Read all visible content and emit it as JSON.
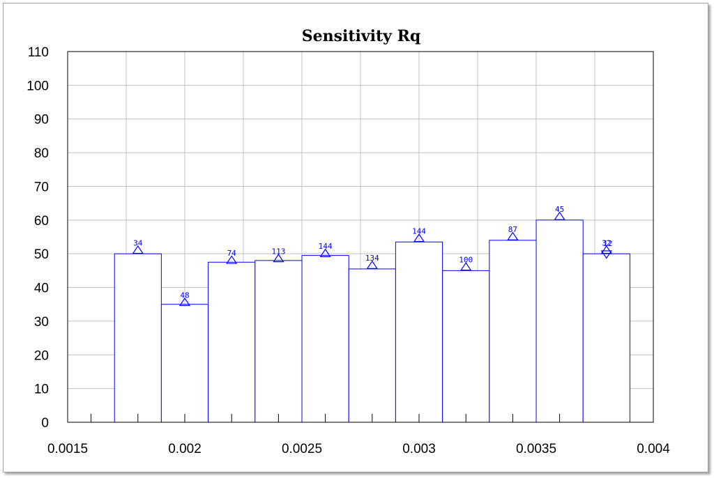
{
  "chart_data": {
    "type": "bar",
    "title": "Sensitivity Rq",
    "xlim": [
      0.0015,
      0.004
    ],
    "ylim": [
      0,
      110
    ],
    "grid": true,
    "x_ticks": [
      "0.0015",
      "0.002",
      "0.0025",
      "0.003",
      "0.0035",
      "0.004"
    ],
    "y_ticks": [
      "0",
      "10",
      "20",
      "30",
      "40",
      "50",
      "60",
      "70",
      "80",
      "90",
      "100",
      "110"
    ],
    "bin_edges": [
      0.0017,
      0.0019,
      0.0021,
      0.0023,
      0.0025,
      0.0027,
      0.0029,
      0.0031,
      0.0033,
      0.0035,
      0.0037,
      0.0039
    ],
    "values": [
      50,
      35,
      47.5,
      48,
      49.5,
      45.5,
      53.5,
      45,
      54,
      60,
      50
    ],
    "markers": [
      {
        "x": 0.0018,
        "y": 51,
        "label": "34",
        "shape": "triangle-up"
      },
      {
        "x": 0.002,
        "y": 35.5,
        "label": "48",
        "shape": "triangle-up"
      },
      {
        "x": 0.0022,
        "y": 48,
        "label": "74",
        "shape": "triangle-up"
      },
      {
        "x": 0.0024,
        "y": 48.5,
        "label": "113",
        "shape": "triangle-up"
      },
      {
        "x": 0.0026,
        "y": 50,
        "label": "144",
        "shape": "triangle-up"
      },
      {
        "x": 0.0028,
        "y": 46.5,
        "label": "134",
        "shape": "triangle-up"
      },
      {
        "x": 0.003,
        "y": 54.5,
        "label": "144",
        "shape": "triangle-up"
      },
      {
        "x": 0.0032,
        "y": 46,
        "label": "100",
        "shape": "triangle-up"
      },
      {
        "x": 0.0034,
        "y": 55,
        "label": "87",
        "shape": "triangle-up"
      },
      {
        "x": 0.0036,
        "y": 61,
        "label": "45",
        "shape": "triangle-up"
      },
      {
        "x": 0.0038,
        "y": 51,
        "label": "32",
        "shape": "triangle-up"
      },
      {
        "x": 0.0038,
        "y": 50,
        "label": "12",
        "shape": "triangle-down"
      }
    ],
    "colors": {
      "bars": "#0000ff",
      "grid": "#c0c0c0",
      "axis": "#000000"
    }
  }
}
